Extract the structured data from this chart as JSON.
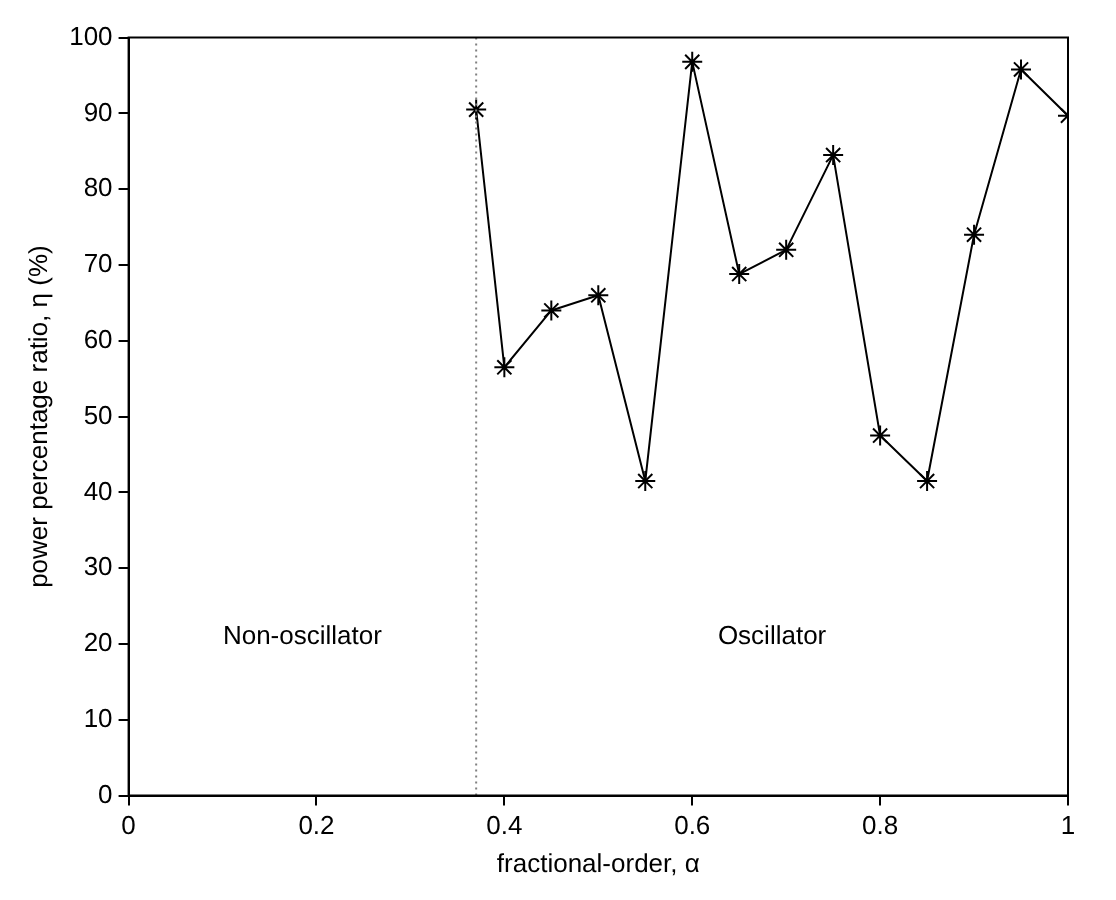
{
  "chart_data": {
    "type": "line",
    "xlabel": "fractional-order, α",
    "ylabel": "power percentage ratio, η (%)",
    "x": [
      0.37,
      0.4,
      0.45,
      0.5,
      0.55,
      0.6,
      0.65,
      0.7,
      0.75,
      0.8,
      0.85,
      0.9,
      0.95,
      1.0
    ],
    "series": [
      {
        "color": "#000000",
        "values": [
          90.5,
          56.5,
          64,
          66,
          41.5,
          96.8,
          68.8,
          72,
          84.5,
          47.5,
          41.5,
          74,
          95.8,
          89.7
        ]
      }
    ],
    "xlim": [
      0,
      1
    ],
    "xticks": [
      0,
      0.2,
      0.4,
      0.6,
      0.8,
      1
    ],
    "ylim": [
      0,
      100
    ],
    "yticks": [
      0,
      10,
      20,
      30,
      40,
      50,
      60,
      70,
      80,
      90,
      100
    ],
    "ref_lines": [
      {
        "axis": "x",
        "value": 0.37,
        "color": "#808080",
        "line_style": "dotted"
      }
    ],
    "annotations": [
      "Non-oscillator",
      "Oscillator"
    ],
    "marker": "cross",
    "line_style": "solid",
    "grid": false,
    "legend": false
  }
}
